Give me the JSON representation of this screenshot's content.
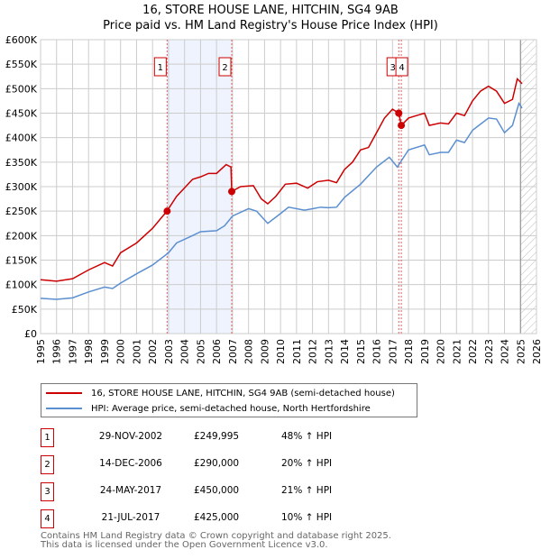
{
  "chart_data": {
    "type": "line",
    "title": "16, STORE HOUSE LANE, HITCHIN, SG4 9AB",
    "subtitle": "Price paid vs. HM Land Registry's House Price Index (HPI)",
    "xlim": [
      1995,
      2026
    ],
    "ylim": [
      0,
      600000
    ],
    "x_ticks": [
      "1995",
      "1996",
      "1997",
      "1998",
      "1999",
      "2000",
      "2001",
      "2002",
      "2003",
      "2004",
      "2005",
      "2006",
      "2007",
      "2008",
      "2009",
      "2010",
      "2011",
      "2012",
      "2013",
      "2014",
      "2015",
      "2016",
      "2017",
      "2018",
      "2019",
      "2020",
      "2021",
      "2022",
      "2023",
      "2024",
      "2025",
      "2026"
    ],
    "y_ticks": [
      {
        "v": 0,
        "l": "£0"
      },
      {
        "v": 50000,
        "l": "£50K"
      },
      {
        "v": 100000,
        "l": "£100K"
      },
      {
        "v": 150000,
        "l": "£150K"
      },
      {
        "v": 200000,
        "l": "£200K"
      },
      {
        "v": 250000,
        "l": "£250K"
      },
      {
        "v": 300000,
        "l": "£300K"
      },
      {
        "v": 350000,
        "l": "£350K"
      },
      {
        "v": 400000,
        "l": "£400K"
      },
      {
        "v": 450000,
        "l": "£450K"
      },
      {
        "v": 500000,
        "l": "£500K"
      },
      {
        "v": 550000,
        "l": "£550K"
      },
      {
        "v": 600000,
        "l": "£600K"
      }
    ],
    "grid": true,
    "series": [
      {
        "name": "16, STORE HOUSE LANE, HITCHIN, SG4 9AB (semi-detached house)",
        "color": "#cc0000",
        "points": [
          [
            1995,
            110
          ],
          [
            1996,
            107
          ],
          [
            1997,
            112
          ],
          [
            1998,
            130
          ],
          [
            1999,
            145
          ],
          [
            1999.5,
            138
          ],
          [
            2000,
            165
          ],
          [
            2001,
            185
          ],
          [
            2002,
            215
          ],
          [
            2002.9,
            250
          ],
          [
            2003.5,
            280
          ],
          [
            2004.5,
            315
          ],
          [
            2005,
            320
          ],
          [
            2005.5,
            327
          ],
          [
            2006,
            327
          ],
          [
            2006.6,
            345
          ],
          [
            2006.9,
            340
          ],
          [
            2006.95,
            290
          ],
          [
            2007.5,
            300
          ],
          [
            2008.3,
            302
          ],
          [
            2008.8,
            275
          ],
          [
            2009.2,
            265
          ],
          [
            2009.7,
            280
          ],
          [
            2010.3,
            305
          ],
          [
            2011,
            307
          ],
          [
            2011.7,
            297
          ],
          [
            2012.3,
            310
          ],
          [
            2013,
            313
          ],
          [
            2013.5,
            308
          ],
          [
            2014,
            335
          ],
          [
            2014.5,
            350
          ],
          [
            2015,
            375
          ],
          [
            2015.5,
            380
          ],
          [
            2016,
            410
          ],
          [
            2016.5,
            440
          ],
          [
            2017,
            458
          ],
          [
            2017.39,
            450
          ],
          [
            2017.55,
            425
          ],
          [
            2018,
            440
          ],
          [
            2018.5,
            445
          ],
          [
            2019,
            450
          ],
          [
            2019.3,
            425
          ],
          [
            2020,
            430
          ],
          [
            2020.5,
            428
          ],
          [
            2021,
            450
          ],
          [
            2021.5,
            445
          ],
          [
            2022,
            475
          ],
          [
            2022.5,
            495
          ],
          [
            2023,
            505
          ],
          [
            2023.5,
            495
          ],
          [
            2024,
            470
          ],
          [
            2024.5,
            478
          ],
          [
            2024.8,
            520
          ],
          [
            2025.1,
            510
          ]
        ]
      },
      {
        "name": "HPI: Average price, semi-detached house, North Hertfordshire",
        "color": "#5b8fd0",
        "points": [
          [
            1995,
            72
          ],
          [
            1996,
            70
          ],
          [
            1997,
            73
          ],
          [
            1998,
            85
          ],
          [
            1999,
            95
          ],
          [
            1999.5,
            92
          ],
          [
            2000,
            103
          ],
          [
            2001,
            122
          ],
          [
            2002,
            140
          ],
          [
            2003,
            165
          ],
          [
            2003.5,
            185
          ],
          [
            2004.5,
            200
          ],
          [
            2005,
            208
          ],
          [
            2006,
            210
          ],
          [
            2006.5,
            220
          ],
          [
            2007,
            240
          ],
          [
            2008,
            255
          ],
          [
            2008.5,
            250
          ],
          [
            2009.2,
            225
          ],
          [
            2010,
            245
          ],
          [
            2010.5,
            258
          ],
          [
            2011.5,
            252
          ],
          [
            2012,
            255
          ],
          [
            2012.5,
            258
          ],
          [
            2013,
            257
          ],
          [
            2013.5,
            258
          ],
          [
            2014,
            278
          ],
          [
            2015,
            305
          ],
          [
            2016,
            340
          ],
          [
            2016.8,
            360
          ],
          [
            2017.3,
            340
          ],
          [
            2017.7,
            360
          ],
          [
            2018,
            375
          ],
          [
            2019,
            385
          ],
          [
            2019.3,
            365
          ],
          [
            2020,
            370
          ],
          [
            2020.5,
            370
          ],
          [
            2021,
            395
          ],
          [
            2021.5,
            390
          ],
          [
            2022,
            415
          ],
          [
            2023,
            440
          ],
          [
            2023.5,
            438
          ],
          [
            2024,
            410
          ],
          [
            2024.5,
            425
          ],
          [
            2024.9,
            470
          ],
          [
            2025.1,
            460
          ]
        ]
      }
    ],
    "sales": [
      {
        "n": "1",
        "x": 2002.91,
        "y": 249995,
        "date": "29-NOV-2002",
        "price": "£249,995",
        "hpi": "48% ↑ HPI"
      },
      {
        "n": "2",
        "x": 2006.95,
        "y": 290000,
        "date": "14-DEC-2006",
        "price": "£290,000",
        "hpi": "20% ↑ HPI"
      },
      {
        "n": "3",
        "x": 2017.39,
        "y": 450000,
        "date": "24-MAY-2017",
        "price": "£450,000",
        "hpi": "21% ↑ HPI"
      },
      {
        "n": "4",
        "x": 2017.55,
        "y": 425000,
        "date": "21-JUL-2017",
        "price": "£425,000",
        "hpi": "10% ↑ HPI"
      }
    ],
    "shaded_range": [
      2002.91,
      2006.95
    ],
    "forecast_hatch_from": 2025.0
  },
  "footer": {
    "line1": "Contains HM Land Registry data © Crown copyright and database right 2025.",
    "line2": "This data is licensed under the Open Government Licence v3.0."
  }
}
